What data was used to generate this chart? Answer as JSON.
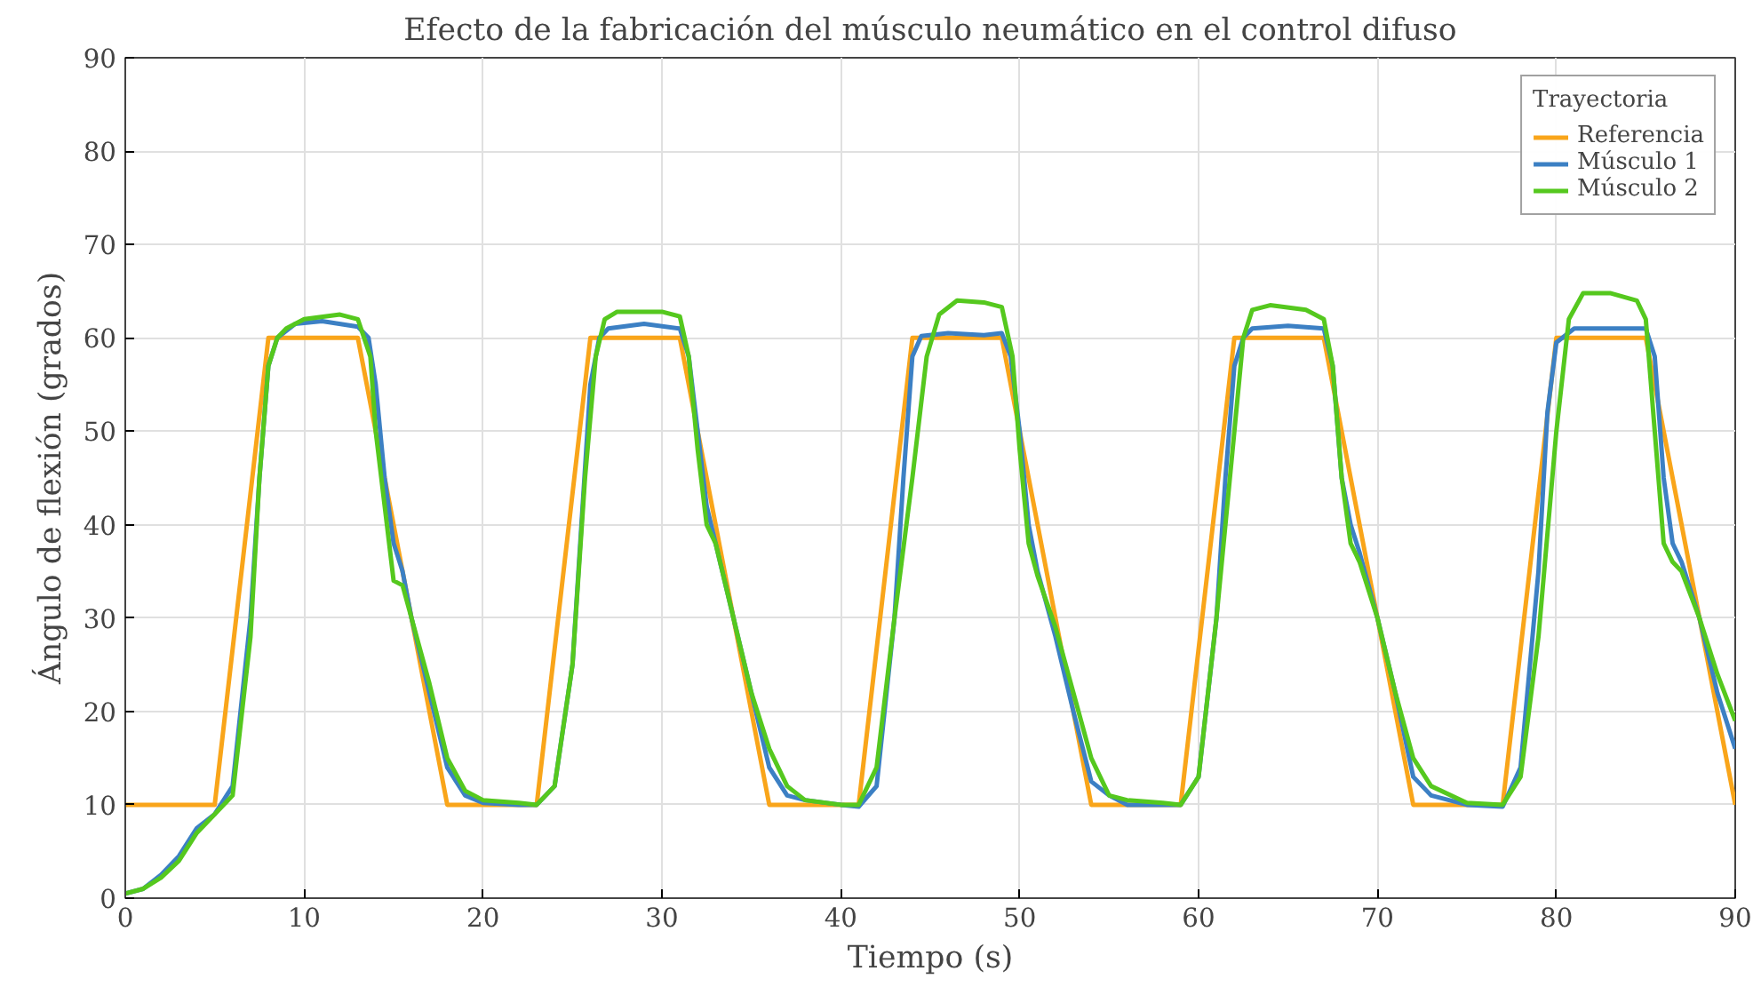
{
  "chart_data": {
    "type": "line",
    "title": "Efecto de la fabricación del músculo neumático en el control difuso",
    "xlabel": "Tiempo (s)",
    "ylabel": "Ángulo de flexión (grados)",
    "legend_title": "Trayectoria",
    "xlim": [
      0,
      90
    ],
    "xticks": [
      0,
      10,
      20,
      30,
      40,
      50,
      60,
      70,
      80,
      90
    ],
    "ylim": [
      0,
      90
    ],
    "yticks": [
      0,
      10,
      20,
      30,
      40,
      50,
      60,
      70,
      80,
      90
    ],
    "grid": true,
    "legend": "top right",
    "line_style": "solid",
    "marker": "none",
    "series": [
      {
        "name": "Referencia",
        "color": "#f9a51a",
        "x": [
          0,
          5,
          8,
          13,
          18,
          23,
          26,
          31,
          36,
          41,
          44,
          49,
          54,
          59,
          62,
          67,
          72,
          77,
          80,
          85,
          90
        ],
        "values": [
          10,
          10,
          60,
          60,
          10,
          10,
          60,
          60,
          10,
          10,
          60,
          60,
          10,
          10,
          60,
          60,
          10,
          10,
          60,
          60,
          10
        ]
      },
      {
        "name": "Músculo 1",
        "color": "#3c80c4",
        "x": [
          0,
          1,
          2,
          3,
          4,
          5,
          6,
          7,
          7.5,
          8,
          8.5,
          9.5,
          11,
          13,
          13.6,
          14,
          14.5,
          15,
          15.5,
          16,
          17,
          18,
          19,
          20,
          22,
          23,
          24,
          25,
          25.5,
          26,
          26.5,
          27,
          29,
          31,
          31.5,
          32,
          32.5,
          33,
          34,
          35,
          36,
          37,
          38,
          40,
          41,
          42,
          43,
          43.5,
          44,
          44.5,
          46,
          48,
          49,
          49.5,
          50,
          50.5,
          51,
          52,
          53,
          54,
          55,
          56,
          58,
          59,
          60,
          61,
          61.5,
          62,
          62.5,
          63,
          65,
          67,
          67.5,
          68,
          68.5,
          69,
          70,
          71,
          72,
          73,
          75,
          77,
          78,
          79,
          79.5,
          80,
          81,
          85,
          85.5,
          86,
          86.5,
          87,
          88,
          89,
          90
        ],
        "values": [
          0.5,
          1,
          2.5,
          4.5,
          7.5,
          9,
          12,
          30,
          45,
          57,
          60,
          61.5,
          61.8,
          61.2,
          60,
          55,
          45,
          38,
          35,
          30,
          22,
          14,
          11,
          10.2,
          10,
          10,
          12,
          25,
          40,
          55,
          60,
          61,
          61.5,
          61,
          58,
          50,
          42,
          38,
          30,
          22,
          14,
          11,
          10.5,
          10,
          9.8,
          12,
          30,
          45,
          58,
          60.2,
          60.5,
          60.3,
          60.5,
          58,
          50,
          40,
          35,
          28,
          20,
          12.5,
          11,
          10,
          10,
          10,
          13,
          30,
          45,
          57,
          60,
          61,
          61.3,
          61,
          57,
          45,
          40,
          37,
          30,
          22,
          13,
          11,
          10,
          9.8,
          14,
          35,
          52,
          59.5,
          61,
          61,
          58,
          45,
          38,
          36,
          30,
          22,
          16
        ]
      },
      {
        "name": "Músculo 2",
        "color": "#55c81e",
        "x": [
          0,
          1,
          2,
          3,
          4,
          5,
          6,
          7,
          7.5,
          8,
          8.5,
          9,
          10,
          12,
          13,
          13.7,
          14,
          14.5,
          15,
          15.5,
          16,
          17,
          18,
          19,
          20,
          22,
          23,
          24,
          25,
          25.7,
          26.3,
          26.8,
          27.5,
          30,
          31,
          31.5,
          32,
          32.5,
          33,
          34,
          35,
          36,
          37,
          38,
          40,
          41,
          42,
          43,
          44,
          44.8,
          45.5,
          46.5,
          48,
          49,
          49.6,
          50,
          50.5,
          51,
          52,
          53,
          54,
          55,
          56,
          58,
          59,
          60,
          61,
          62,
          62.5,
          63,
          64,
          66,
          67,
          67.5,
          68,
          68.5,
          69,
          70,
          71,
          72,
          73,
          75,
          77,
          78,
          79,
          80,
          80.7,
          81.5,
          83,
          84.5,
          85,
          85.5,
          86,
          86.5,
          87,
          88,
          89,
          90
        ],
        "values": [
          0.5,
          1,
          2.2,
          4,
          7,
          9,
          11,
          28,
          45,
          57,
          60,
          61,
          62,
          62.5,
          62,
          58,
          50,
          42,
          34,
          33.5,
          30,
          23,
          15,
          11.5,
          10.5,
          10.2,
          10,
          12,
          25,
          45,
          58,
          62,
          62.8,
          62.8,
          62.3,
          58,
          48,
          40,
          38,
          30,
          22,
          16,
          12,
          10.5,
          10,
          10,
          14,
          30,
          45,
          58,
          62.5,
          64,
          63.8,
          63.3,
          58,
          48,
          38,
          34.5,
          29,
          22,
          15,
          11,
          10.5,
          10.2,
          10,
          13,
          30,
          50,
          60,
          63,
          63.5,
          63,
          62,
          57,
          45,
          38,
          36,
          30,
          22,
          15,
          12,
          10.2,
          10,
          13,
          28,
          50,
          62,
          64.8,
          64.8,
          64,
          62,
          50,
          38,
          36,
          35,
          30,
          24,
          19
        ]
      }
    ]
  }
}
